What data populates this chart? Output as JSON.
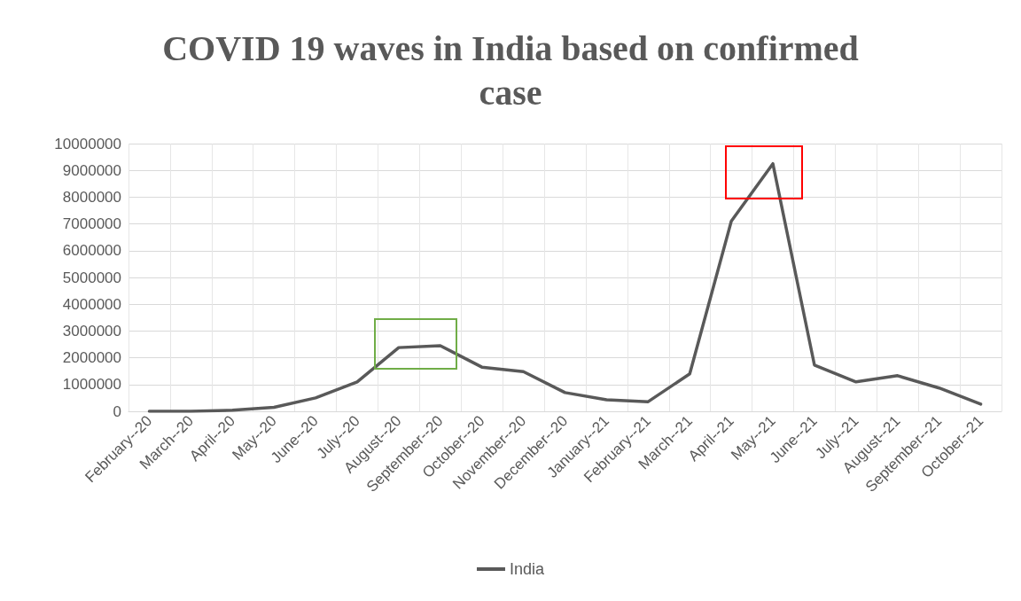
{
  "chart_data": {
    "type": "line",
    "title": "COVID 19 waves in India based on confirmed case",
    "categories": [
      "February--20",
      "March--20",
      "April--20",
      "May--20",
      "June--20",
      "July--20",
      "August--20",
      "September--20",
      "October--20",
      "November--20",
      "December--20",
      "January--21",
      "February--21",
      "March--21",
      "April--21",
      "May--21",
      "June--21",
      "July--21",
      "August--21",
      "September--21",
      "October--21"
    ],
    "series": [
      {
        "name": "India",
        "color": "#595959",
        "values": [
          0,
          0,
          40000,
          150000,
          500000,
          1100000,
          2380000,
          2450000,
          1650000,
          1480000,
          700000,
          430000,
          360000,
          1400000,
          7100000,
          9250000,
          1730000,
          1100000,
          1330000,
          870000,
          270000
        ]
      }
    ],
    "ylim": [
      0,
      10000000
    ],
    "yticks": [
      0,
      1000000,
      2000000,
      3000000,
      4000000,
      5000000,
      6000000,
      7000000,
      8000000,
      9000000,
      10000000
    ],
    "grid": true,
    "legend": "bottom",
    "marker": "none",
    "line_style": "solid"
  }
}
